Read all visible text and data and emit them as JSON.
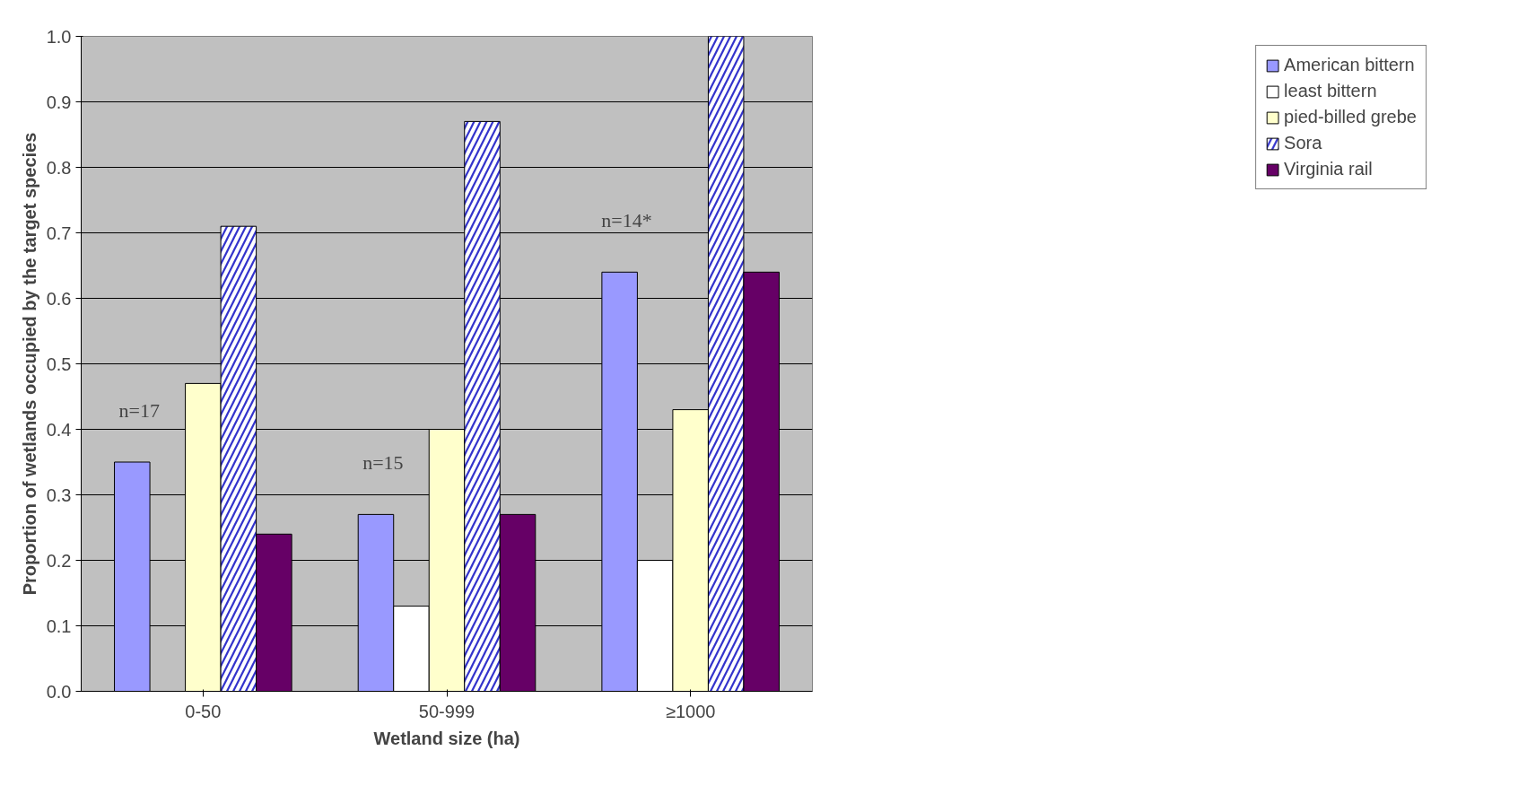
{
  "chart_data": {
    "type": "bar",
    "xlabel": "Wetland size (ha)",
    "ylabel": "Proportion of wetlands occupied by the target species",
    "categories": [
      "0-50",
      "50-999",
      "≥1000"
    ],
    "series": [
      {
        "name": "American bittern",
        "color": "#9999ff",
        "values": [
          0.35,
          0.27,
          0.64
        ]
      },
      {
        "name": "least bittern",
        "color": "#ffffff",
        "values": [
          null,
          0.13,
          0.2
        ]
      },
      {
        "name": "pied-billed grebe",
        "color": "#ffffcc",
        "values": [
          0.47,
          0.4,
          0.43
        ]
      },
      {
        "name": "Sora",
        "color": "#3333cc",
        "values": [
          0.71,
          0.87,
          1.0
        ]
      },
      {
        "name": "Virginia rail",
        "color": "#660066",
        "values": [
          0.24,
          0.27,
          0.64
        ]
      }
    ],
    "ylim": [
      0,
      1.0
    ],
    "yticks": [
      {
        "value": 0,
        "label": "0.0"
      },
      0.1,
      0.2,
      0.3,
      0.4,
      0.5,
      0.6,
      0.7,
      0.8,
      0.9,
      {
        "value": 1.0,
        "label": "1.0"
      }
    ],
    "grid": "y",
    "legend": "right",
    "annotations": [
      "n=17",
      "n=15",
      "n=14*"
    ]
  }
}
